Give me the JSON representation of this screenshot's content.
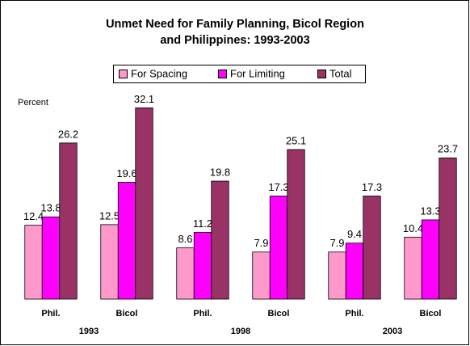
{
  "chart_data": {
    "type": "bar",
    "title": [
      "Unmet Need for Family Planning, Bicol Region",
      "and Philippines: 1993-2003"
    ],
    "y_label": "Percent",
    "categories": [
      "Phil.",
      "Bicol",
      "Phil.",
      "Bicol",
      "Phil.",
      "Bicol"
    ],
    "years": [
      "1993",
      "1998",
      "2003"
    ],
    "series": [
      {
        "name": "For Spacing",
        "color": "#ff99cc",
        "values": [
          12.4,
          12.5,
          8.6,
          7.9,
          7.9,
          10.4
        ]
      },
      {
        "name": "For Limiting",
        "color": "#ff00ff",
        "values": [
          13.8,
          19.6,
          11.2,
          17.3,
          9.4,
          13.3
        ]
      },
      {
        "name": "Total",
        "color": "#993366",
        "values": [
          26.2,
          32.1,
          19.8,
          25.1,
          17.3,
          23.7
        ]
      }
    ],
    "ylim": [
      0,
      35
    ],
    "legend": "top"
  }
}
